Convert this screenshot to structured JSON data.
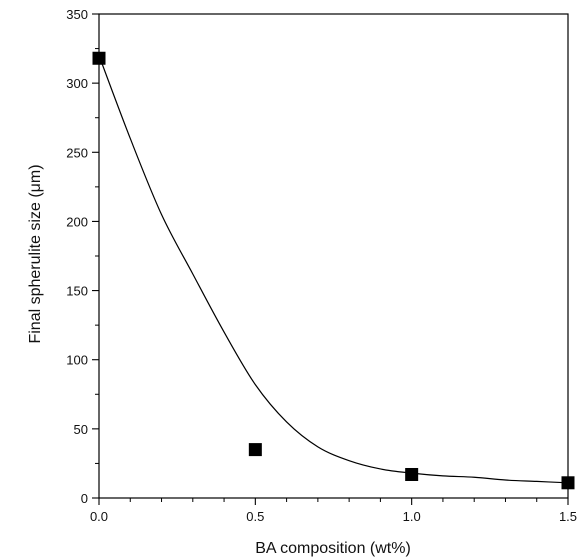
{
  "chart_data": {
    "type": "scatter",
    "xlabel": "BA composition (wt%)",
    "ylabel": "Final spherulite size (μm)",
    "xlim": [
      0.0,
      1.5
    ],
    "ylim": [
      0,
      350
    ],
    "xticks": [
      "0.0",
      "0.5",
      "1.0",
      "1.5"
    ],
    "yticks": [
      "0",
      "50",
      "100",
      "150",
      "200",
      "250",
      "300",
      "350"
    ],
    "grid": false,
    "legend": "none",
    "series": [
      {
        "marker": "square",
        "color": "#000000",
        "x": [
          0.0,
          0.5,
          1.0,
          1.5
        ],
        "y": [
          318,
          35,
          17,
          11
        ]
      }
    ],
    "fit_curve": {
      "style": "smooth line",
      "color": "#000000",
      "x": [
        0.0,
        0.1,
        0.2,
        0.3,
        0.4,
        0.5,
        0.6,
        0.7,
        0.8,
        0.9,
        1.0,
        1.1,
        1.2,
        1.3,
        1.4,
        1.5
      ],
      "y": [
        320,
        260,
        205,
        162,
        120,
        82,
        55,
        37,
        27,
        21,
        18,
        16,
        15,
        13,
        12,
        11
      ]
    }
  }
}
